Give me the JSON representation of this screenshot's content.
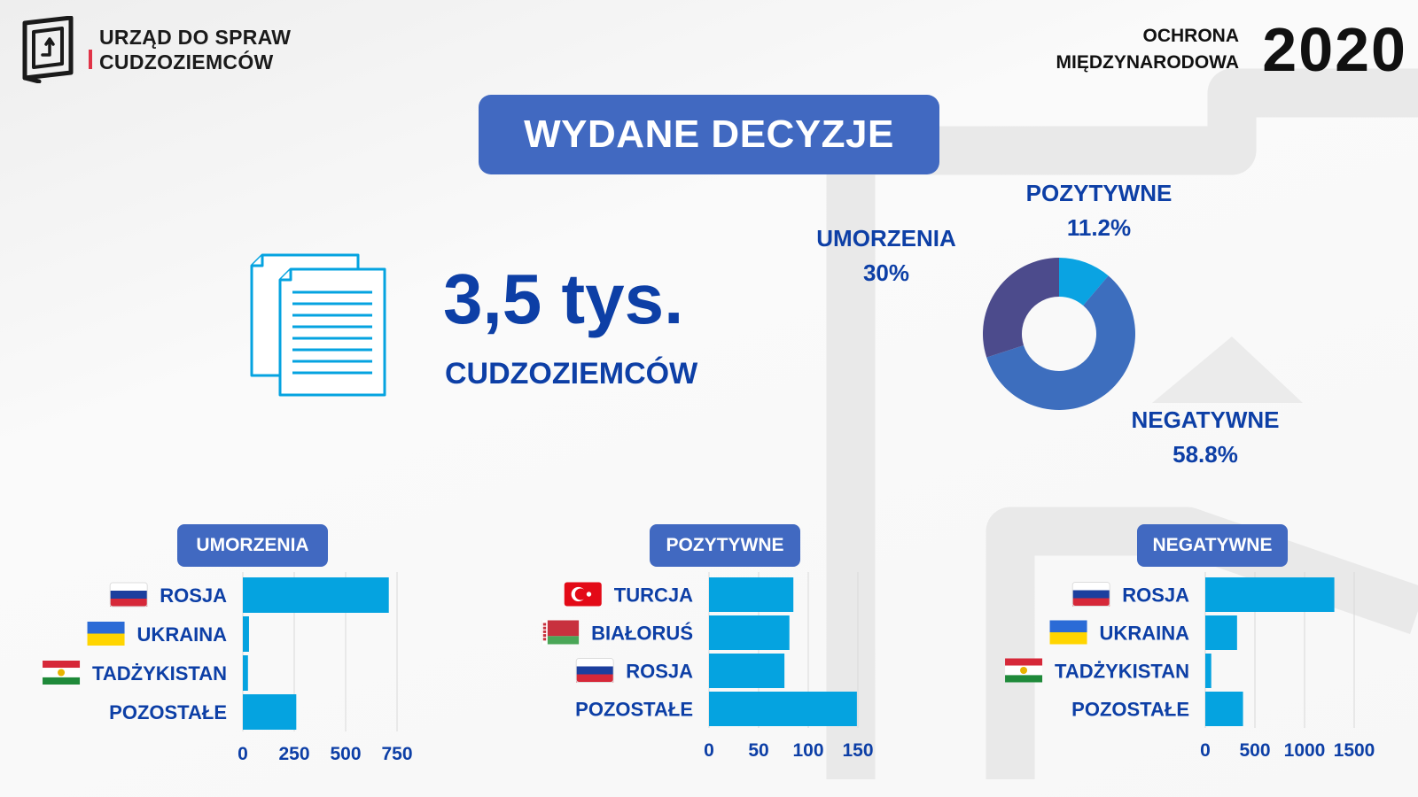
{
  "header": {
    "org_line1": "URZĄD DO SPRAW",
    "org_line2": "CUDZOZIEMCÓW",
    "program_line1": "OCHRONA",
    "program_line2": "MIĘDZYNARODOWA",
    "year": "2020"
  },
  "title": "WYDANE DECYZJE",
  "summary": {
    "value": "3,5 tys.",
    "unit": "CUDZOZIEMCÓW"
  },
  "colors": {
    "accent": "#4169c1",
    "text": "#0d3fa6",
    "bar": "#05a3e0",
    "logo_red": "#e03347"
  },
  "chart_data": [
    {
      "type": "pie",
      "donut": true,
      "categories": [
        "POZYTYWNE",
        "NEGATYWNE",
        "UMORZENIA"
      ],
      "labels": [
        "11.2%",
        "58.8%",
        "30%"
      ],
      "values": [
        11.2,
        58.8,
        30
      ],
      "colors": [
        "#0aa3e2",
        "#3d6ebe",
        "#4c4b8c"
      ]
    },
    {
      "type": "bar",
      "orientation": "horizontal",
      "title": "UMORZENIA",
      "categories": [
        "ROSJA",
        "UKRAINA",
        "TADŻYKISTAN",
        "POZOSTAŁE"
      ],
      "flags": [
        "russia",
        "ukraine",
        "tajikistan",
        ""
      ],
      "values": [
        710,
        30,
        25,
        260
      ],
      "xlim": [
        0,
        750
      ],
      "xticks": [
        0,
        250,
        500,
        750
      ],
      "xtick_labels": [
        "0",
        "250",
        "500",
        "750"
      ],
      "grid": true
    },
    {
      "type": "bar",
      "orientation": "horizontal",
      "title": "POZYTYWNE",
      "categories": [
        "TURCJA",
        "BIAŁORUŚ",
        "ROSJA",
        "POZOSTAŁE"
      ],
      "flags": [
        "turkey",
        "belarus",
        "russia",
        ""
      ],
      "values": [
        85,
        81,
        76,
        149
      ],
      "xlim": [
        0,
        150
      ],
      "xticks": [
        0,
        50,
        100,
        150
      ],
      "xtick_labels": [
        "0",
        "50",
        "100",
        "150"
      ],
      "grid": true
    },
    {
      "type": "bar",
      "orientation": "horizontal",
      "title": "NEGATYWNE",
      "categories": [
        "ROSJA",
        "UKRAINA",
        "TADŻYKISTAN",
        "POZOSTAŁE"
      ],
      "flags": [
        "russia",
        "ukraine",
        "tajikistan",
        ""
      ],
      "values": [
        1300,
        320,
        60,
        380
      ],
      "xlim": [
        0,
        1500
      ],
      "xticks": [
        0,
        500,
        1000,
        1500
      ],
      "xtick_labels": [
        "0",
        "500",
        "1000",
        "1500"
      ],
      "grid": true
    }
  ]
}
